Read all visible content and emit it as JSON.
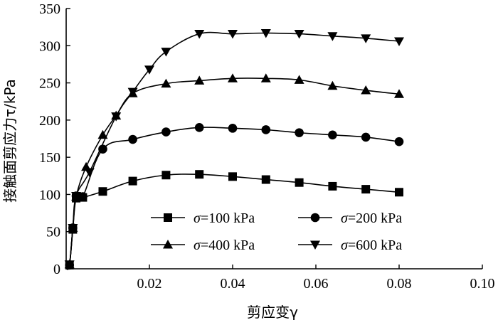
{
  "chart_data": {
    "type": "line",
    "xlabel": "剪应变γ",
    "ylabel": "接触面剪应力τ/kPa",
    "xlim": [
      0,
      0.1
    ],
    "ylim": [
      0,
      350
    ],
    "x_ticks": [
      0,
      0.02,
      0.04,
      0.06,
      0.08,
      0.1
    ],
    "x_tick_labels": [
      "",
      "0.02",
      "0.04",
      "0.06",
      "0.08",
      "0.10"
    ],
    "y_ticks": [
      0,
      50,
      100,
      150,
      200,
      250,
      300,
      350
    ],
    "y_tick_labels": [
      "0",
      "50",
      "100",
      "150",
      "200",
      "250",
      "300",
      "350"
    ],
    "grid": false,
    "legend": {
      "placement": "bottom-right",
      "sigma_symbol": "σ",
      "entries": [
        {
          "label": "=100 kPa",
          "marker": "square"
        },
        {
          "label": "=200 kPa",
          "marker": "circle"
        },
        {
          "label": "=400 kPa",
          "marker": "triangle-up"
        },
        {
          "label": "=600 kPa",
          "marker": "triangle-down"
        }
      ]
    },
    "series": [
      {
        "marker": "square",
        "points": [
          [
            0.0008,
            5
          ],
          [
            0.0016,
            53
          ],
          [
            0.0024,
            95
          ],
          [
            0.004,
            96
          ],
          [
            0.0088,
            104
          ],
          [
            0.016,
            118
          ],
          [
            0.024,
            126
          ],
          [
            0.032,
            127
          ],
          [
            0.04,
            124
          ],
          [
            0.048,
            120
          ],
          [
            0.056,
            116
          ],
          [
            0.064,
            111
          ],
          [
            0.072,
            107
          ],
          [
            0.08,
            103
          ]
        ]
      },
      {
        "marker": "circle",
        "points": [
          [
            0.0008,
            5
          ],
          [
            0.0016,
            55
          ],
          [
            0.0024,
            98
          ],
          [
            0.004,
            97
          ],
          [
            0.0088,
            161
          ],
          [
            0.016,
            174
          ],
          [
            0.024,
            184
          ],
          [
            0.032,
            190
          ],
          [
            0.04,
            189
          ],
          [
            0.048,
            187
          ],
          [
            0.056,
            183
          ],
          [
            0.064,
            180
          ],
          [
            0.072,
            177
          ],
          [
            0.08,
            171
          ]
        ]
      },
      {
        "marker": "triangle-up",
        "points": [
          [
            0.0008,
            6
          ],
          [
            0.0016,
            55
          ],
          [
            0.0024,
            97
          ],
          [
            0.0048,
            137
          ],
          [
            0.0088,
            180
          ],
          [
            0.012,
            206
          ],
          [
            0.016,
            236
          ],
          [
            0.024,
            249
          ],
          [
            0.032,
            253
          ],
          [
            0.04,
            256
          ],
          [
            0.048,
            256
          ],
          [
            0.056,
            254
          ],
          [
            0.064,
            246
          ],
          [
            0.072,
            240
          ],
          [
            0.08,
            235
          ]
        ]
      },
      {
        "marker": "triangle-down",
        "points": [
          [
            0.0008,
            6
          ],
          [
            0.0016,
            55
          ],
          [
            0.0024,
            98
          ],
          [
            0.0056,
            130
          ],
          [
            0.012,
            205
          ],
          [
            0.016,
            238
          ],
          [
            0.02,
            268
          ],
          [
            0.024,
            292
          ],
          [
            0.032,
            316
          ],
          [
            0.04,
            316
          ],
          [
            0.048,
            317
          ],
          [
            0.056,
            316
          ],
          [
            0.064,
            313
          ],
          [
            0.072,
            310
          ],
          [
            0.08,
            306
          ]
        ]
      }
    ]
  }
}
